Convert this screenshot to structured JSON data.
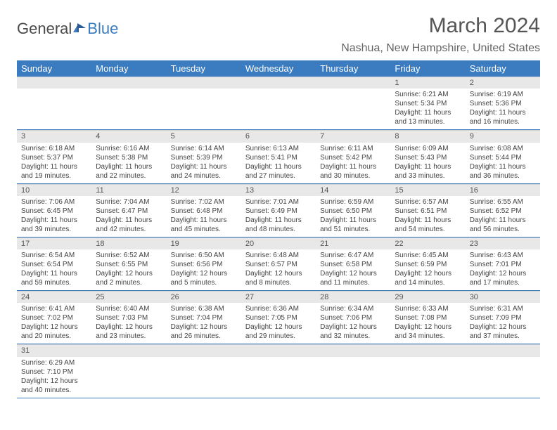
{
  "logo": {
    "text1": "General",
    "text2": "Blue"
  },
  "title": "March 2024",
  "location": "Nashua, New Hampshire, United States",
  "colors": {
    "header_bg": "#3b7bbf",
    "header_fg": "#ffffff",
    "daynum_bg": "#e8e8e8",
    "row_border": "#3b7bbf",
    "text": "#444444"
  },
  "dayNames": [
    "Sunday",
    "Monday",
    "Tuesday",
    "Wednesday",
    "Thursday",
    "Friday",
    "Saturday"
  ],
  "weeks": [
    [
      {
        "n": "",
        "sr": "",
        "ss": "",
        "dl": ""
      },
      {
        "n": "",
        "sr": "",
        "ss": "",
        "dl": ""
      },
      {
        "n": "",
        "sr": "",
        "ss": "",
        "dl": ""
      },
      {
        "n": "",
        "sr": "",
        "ss": "",
        "dl": ""
      },
      {
        "n": "",
        "sr": "",
        "ss": "",
        "dl": ""
      },
      {
        "n": "1",
        "sr": "Sunrise: 6:21 AM",
        "ss": "Sunset: 5:34 PM",
        "dl": "Daylight: 11 hours and 13 minutes."
      },
      {
        "n": "2",
        "sr": "Sunrise: 6:19 AM",
        "ss": "Sunset: 5:36 PM",
        "dl": "Daylight: 11 hours and 16 minutes."
      }
    ],
    [
      {
        "n": "3",
        "sr": "Sunrise: 6:18 AM",
        "ss": "Sunset: 5:37 PM",
        "dl": "Daylight: 11 hours and 19 minutes."
      },
      {
        "n": "4",
        "sr": "Sunrise: 6:16 AM",
        "ss": "Sunset: 5:38 PM",
        "dl": "Daylight: 11 hours and 22 minutes."
      },
      {
        "n": "5",
        "sr": "Sunrise: 6:14 AM",
        "ss": "Sunset: 5:39 PM",
        "dl": "Daylight: 11 hours and 24 minutes."
      },
      {
        "n": "6",
        "sr": "Sunrise: 6:13 AM",
        "ss": "Sunset: 5:41 PM",
        "dl": "Daylight: 11 hours and 27 minutes."
      },
      {
        "n": "7",
        "sr": "Sunrise: 6:11 AM",
        "ss": "Sunset: 5:42 PM",
        "dl": "Daylight: 11 hours and 30 minutes."
      },
      {
        "n": "8",
        "sr": "Sunrise: 6:09 AM",
        "ss": "Sunset: 5:43 PM",
        "dl": "Daylight: 11 hours and 33 minutes."
      },
      {
        "n": "9",
        "sr": "Sunrise: 6:08 AM",
        "ss": "Sunset: 5:44 PM",
        "dl": "Daylight: 11 hours and 36 minutes."
      }
    ],
    [
      {
        "n": "10",
        "sr": "Sunrise: 7:06 AM",
        "ss": "Sunset: 6:45 PM",
        "dl": "Daylight: 11 hours and 39 minutes."
      },
      {
        "n": "11",
        "sr": "Sunrise: 7:04 AM",
        "ss": "Sunset: 6:47 PM",
        "dl": "Daylight: 11 hours and 42 minutes."
      },
      {
        "n": "12",
        "sr": "Sunrise: 7:02 AM",
        "ss": "Sunset: 6:48 PM",
        "dl": "Daylight: 11 hours and 45 minutes."
      },
      {
        "n": "13",
        "sr": "Sunrise: 7:01 AM",
        "ss": "Sunset: 6:49 PM",
        "dl": "Daylight: 11 hours and 48 minutes."
      },
      {
        "n": "14",
        "sr": "Sunrise: 6:59 AM",
        "ss": "Sunset: 6:50 PM",
        "dl": "Daylight: 11 hours and 51 minutes."
      },
      {
        "n": "15",
        "sr": "Sunrise: 6:57 AM",
        "ss": "Sunset: 6:51 PM",
        "dl": "Daylight: 11 hours and 54 minutes."
      },
      {
        "n": "16",
        "sr": "Sunrise: 6:55 AM",
        "ss": "Sunset: 6:52 PM",
        "dl": "Daylight: 11 hours and 56 minutes."
      }
    ],
    [
      {
        "n": "17",
        "sr": "Sunrise: 6:54 AM",
        "ss": "Sunset: 6:54 PM",
        "dl": "Daylight: 11 hours and 59 minutes."
      },
      {
        "n": "18",
        "sr": "Sunrise: 6:52 AM",
        "ss": "Sunset: 6:55 PM",
        "dl": "Daylight: 12 hours and 2 minutes."
      },
      {
        "n": "19",
        "sr": "Sunrise: 6:50 AM",
        "ss": "Sunset: 6:56 PM",
        "dl": "Daylight: 12 hours and 5 minutes."
      },
      {
        "n": "20",
        "sr": "Sunrise: 6:48 AM",
        "ss": "Sunset: 6:57 PM",
        "dl": "Daylight: 12 hours and 8 minutes."
      },
      {
        "n": "21",
        "sr": "Sunrise: 6:47 AM",
        "ss": "Sunset: 6:58 PM",
        "dl": "Daylight: 12 hours and 11 minutes."
      },
      {
        "n": "22",
        "sr": "Sunrise: 6:45 AM",
        "ss": "Sunset: 6:59 PM",
        "dl": "Daylight: 12 hours and 14 minutes."
      },
      {
        "n": "23",
        "sr": "Sunrise: 6:43 AM",
        "ss": "Sunset: 7:01 PM",
        "dl": "Daylight: 12 hours and 17 minutes."
      }
    ],
    [
      {
        "n": "24",
        "sr": "Sunrise: 6:41 AM",
        "ss": "Sunset: 7:02 PM",
        "dl": "Daylight: 12 hours and 20 minutes."
      },
      {
        "n": "25",
        "sr": "Sunrise: 6:40 AM",
        "ss": "Sunset: 7:03 PM",
        "dl": "Daylight: 12 hours and 23 minutes."
      },
      {
        "n": "26",
        "sr": "Sunrise: 6:38 AM",
        "ss": "Sunset: 7:04 PM",
        "dl": "Daylight: 12 hours and 26 minutes."
      },
      {
        "n": "27",
        "sr": "Sunrise: 6:36 AM",
        "ss": "Sunset: 7:05 PM",
        "dl": "Daylight: 12 hours and 29 minutes."
      },
      {
        "n": "28",
        "sr": "Sunrise: 6:34 AM",
        "ss": "Sunset: 7:06 PM",
        "dl": "Daylight: 12 hours and 32 minutes."
      },
      {
        "n": "29",
        "sr": "Sunrise: 6:33 AM",
        "ss": "Sunset: 7:08 PM",
        "dl": "Daylight: 12 hours and 34 minutes."
      },
      {
        "n": "30",
        "sr": "Sunrise: 6:31 AM",
        "ss": "Sunset: 7:09 PM",
        "dl": "Daylight: 12 hours and 37 minutes."
      }
    ],
    [
      {
        "n": "31",
        "sr": "Sunrise: 6:29 AM",
        "ss": "Sunset: 7:10 PM",
        "dl": "Daylight: 12 hours and 40 minutes."
      },
      {
        "n": "",
        "sr": "",
        "ss": "",
        "dl": ""
      },
      {
        "n": "",
        "sr": "",
        "ss": "",
        "dl": ""
      },
      {
        "n": "",
        "sr": "",
        "ss": "",
        "dl": ""
      },
      {
        "n": "",
        "sr": "",
        "ss": "",
        "dl": ""
      },
      {
        "n": "",
        "sr": "",
        "ss": "",
        "dl": ""
      },
      {
        "n": "",
        "sr": "",
        "ss": "",
        "dl": ""
      }
    ]
  ]
}
